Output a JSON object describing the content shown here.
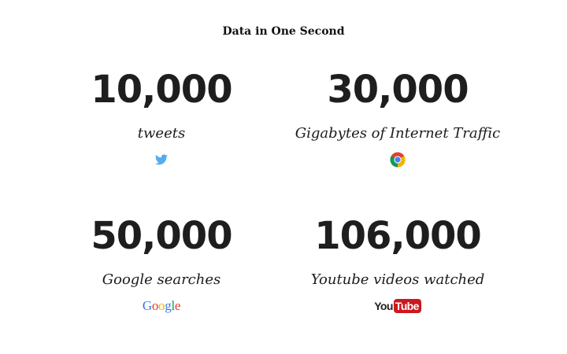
{
  "title": "Data in One Second",
  "stats": [
    {
      "value": "10,000",
      "label": "tweets",
      "icon": "twitter-bird-icon",
      "color": "#55acee"
    },
    {
      "value": "30,000",
      "label": "Gigabytes of Internet Traffic",
      "icon": "chrome-icon"
    },
    {
      "value": "50,000",
      "label": "Google searches",
      "icon": "google-logo"
    },
    {
      "value": "106,000",
      "label": "Youtube videos watched",
      "icon": "youtube-logo"
    }
  ],
  "logos": {
    "google_letters": [
      "G",
      "o",
      "o",
      "g",
      "l",
      "e"
    ],
    "google_colors": [
      "#3b78e7",
      "#e53935",
      "#f4b400",
      "#3b78e7",
      "#0f9d58",
      "#e53935"
    ],
    "youtube_you": "You",
    "youtube_tube": "Tube"
  }
}
